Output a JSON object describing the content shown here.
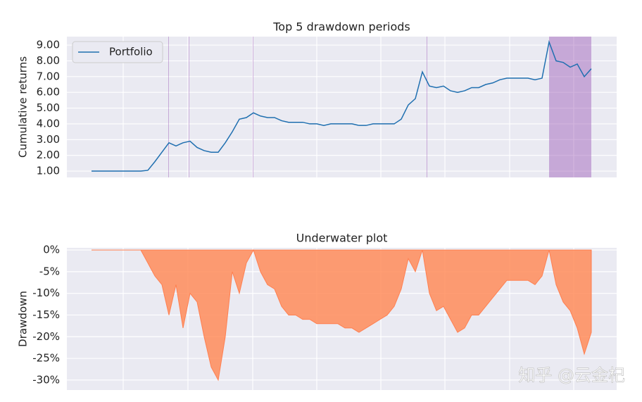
{
  "chart_data": [
    {
      "type": "line",
      "title": "Top 5 drawdown periods",
      "ylabel": "Cumulative returns",
      "series": [
        {
          "name": "Portfolio",
          "color": "#1f6fb0",
          "values": [
            1,
            1,
            1,
            1,
            1,
            1,
            1,
            1,
            1.05,
            1.6,
            2.2,
            2.8,
            2.6,
            2.8,
            2.9,
            2.5,
            2.3,
            2.2,
            2.2,
            2.8,
            3.5,
            4.3,
            4.4,
            4.7,
            4.5,
            4.4,
            4.4,
            4.2,
            4.1,
            4.1,
            4.1,
            4.0,
            4.0,
            3.9,
            4.0,
            4.0,
            4.0,
            4.0,
            3.9,
            3.9,
            4.0,
            4.0,
            4.0,
            4.0,
            4.3,
            5.2,
            5.6,
            7.3,
            6.4,
            6.3,
            6.4,
            6.1,
            6.0,
            6.1,
            6.3,
            6.3,
            6.5,
            6.6,
            6.8,
            6.9,
            6.9,
            6.9,
            6.9,
            6.8,
            6.9,
            9.2,
            8.0,
            7.9,
            7.6,
            7.8,
            7.0,
            7.5
          ]
        }
      ],
      "drawdown_periods": [
        [
          65,
          71
        ],
        [
          10.9,
          11.0
        ],
        [
          13.8,
          13.9
        ],
        [
          22.9,
          23.0
        ],
        [
          47.6,
          47.7
        ]
      ],
      "period_color": "#9b59b6",
      "xlim": [
        -3.5,
        74.6
      ],
      "xticks": [
        4.5,
        13.7,
        22.9,
        32,
        41.1,
        50.2,
        59.4,
        68.5
      ],
      "ylim": [
        0.6,
        9.54
      ],
      "yticks": [
        {
          "value": 1,
          "label": "1.00"
        },
        {
          "value": 2,
          "label": "2.00"
        },
        {
          "value": 3,
          "label": "3.00"
        },
        {
          "value": 4,
          "label": "4.00"
        },
        {
          "value": 5,
          "label": "5.00"
        },
        {
          "value": 6,
          "label": "6.00"
        },
        {
          "value": 7,
          "label": "7.00"
        },
        {
          "value": 8,
          "label": "8.00"
        },
        {
          "value": 9,
          "label": "9.00"
        }
      ],
      "grid": true,
      "legend": "upper left"
    },
    {
      "type": "area",
      "title": "Underwater plot",
      "ylabel": "Drawdown",
      "series": [
        {
          "name": "Drawdown",
          "color": "#ff8c5a",
          "values": [
            0,
            0,
            0,
            0,
            0,
            0,
            0,
            0,
            -3,
            -6,
            -8,
            -15,
            -8,
            -18,
            -10,
            -12,
            -20,
            -27,
            -30,
            -20,
            -5,
            -10,
            -3,
            0,
            -5,
            -8,
            -9,
            -13,
            -15,
            -15,
            -16,
            -16,
            -17,
            -17,
            -17,
            -17,
            -18,
            -18,
            -19,
            -18,
            -17,
            -16,
            -15,
            -13,
            -9,
            -2,
            -5,
            0,
            -10,
            -14,
            -13,
            -16,
            -19,
            -18,
            -15,
            -15,
            -13,
            -11,
            -9,
            -7,
            -7,
            -7,
            -7,
            -8,
            -6,
            0,
            -8,
            -12,
            -14,
            -18,
            -24,
            -19
          ]
        }
      ],
      "xlim": [
        -3.5,
        74.6
      ],
      "xticks": [
        4.5,
        13.7,
        22.9,
        32,
        41.1,
        50.2,
        59.4,
        68.5
      ],
      "ylim": [
        -32.3,
        0.5
      ],
      "yticks": [
        {
          "value": 0,
          "label": "0%"
        },
        {
          "value": -5,
          "label": "-5%"
        },
        {
          "value": -10,
          "label": "-10%"
        },
        {
          "value": -15,
          "label": "-15%"
        },
        {
          "value": -20,
          "label": "-20%"
        },
        {
          "value": -25,
          "label": "-25%"
        },
        {
          "value": -30,
          "label": "-30%"
        }
      ],
      "grid": true
    }
  ],
  "watermark": "知乎 @云金杞"
}
